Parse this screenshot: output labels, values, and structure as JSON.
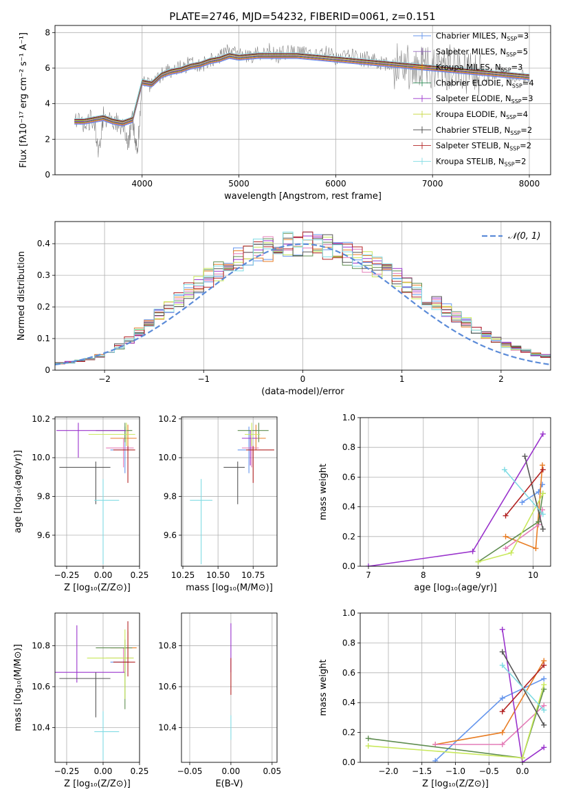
{
  "chart_data": [
    {
      "id": "spec",
      "type": "line",
      "title": "PLATE=2746, MJD=54232, FIBERID=0061, z=0.151",
      "xlabel": "wavelength [Angstrom, rest frame]",
      "ylabel": "Flux [fλ10⁻¹⁷ erg cm⁻² s⁻¹ A⁻¹]",
      "xlim": [
        3100,
        8220
      ],
      "ylim": [
        0,
        8.4
      ],
      "xticks": [
        4000,
        5000,
        6000,
        7000,
        8000
      ],
      "yticks": [
        0,
        2,
        4,
        6,
        8
      ],
      "data_series": {
        "name": "",
        "color": "#808080",
        "x": [
          3300,
          3400,
          3500,
          3550,
          3600,
          3700,
          3800,
          3850,
          3900,
          3950,
          4000,
          4100,
          4200,
          4300,
          4400,
          4500,
          4600,
          4700,
          4800,
          4900,
          5000,
          5100,
          5200,
          5300,
          5400,
          5500,
          5600,
          5700,
          5800,
          5900,
          6000,
          6100,
          6200,
          6300,
          6400,
          6500,
          6600,
          6700,
          6800,
          6900,
          7000,
          7100,
          7200,
          7300,
          7400,
          7500,
          7600,
          7700,
          7800,
          7900,
          8000
        ],
        "y": [
          3.0,
          2.9,
          3.2,
          1.0,
          3.3,
          3.0,
          2.8,
          1.5,
          3.2,
          1.2,
          5.2,
          5.0,
          5.6,
          5.9,
          6.0,
          6.3,
          6.1,
          6.5,
          6.6,
          7.0,
          6.8,
          6.6,
          6.8,
          7.0,
          6.7,
          6.9,
          6.8,
          6.9,
          6.7,
          6.8,
          6.6,
          6.7,
          6.6,
          6.5,
          6.4,
          6.3,
          6.1,
          6.2,
          6.0,
          6.1,
          5.9,
          6.0,
          6.1,
          5.9,
          5.8,
          5.7,
          5.6,
          5.7,
          5.5,
          5.6,
          5.5
        ]
      },
      "model_series_names": [
        "Chabrier MILES, N_SSP=3",
        "Salpeter MILES, N_SSP=5",
        "Kroupa MILES, N_SSP=3",
        "Chabrier ELODIE, N_SSP=4",
        "Salpeter ELODIE, N_SSP=3",
        "Kroupa ELODIE, N_SSP=4",
        "Chabrier STELIB, N_SSP=2",
        "Salpeter STELIB, N_SSP=2",
        "Kroupa STELIB, N_SSP=2"
      ],
      "model_line_x": [
        3300,
        3400,
        3500,
        3600,
        3700,
        3800,
        3900,
        4000,
        4100,
        4200,
        4300,
        4400,
        4500,
        4600,
        4700,
        4800,
        4900,
        5000,
        5200,
        5400,
        5600,
        5800,
        6000,
        6200,
        6400,
        6600,
        6800,
        7000,
        7200,
        7400,
        7600,
        7800,
        8000
      ],
      "model_line_y": [
        3.0,
        3.0,
        3.1,
        3.2,
        3.0,
        2.9,
        3.1,
        5.2,
        5.1,
        5.6,
        5.8,
        5.9,
        6.1,
        6.2,
        6.4,
        6.5,
        6.7,
        6.6,
        6.7,
        6.7,
        6.7,
        6.6,
        6.5,
        6.4,
        6.3,
        6.2,
        6.1,
        6.0,
        5.9,
        5.8,
        5.7,
        5.6,
        5.5
      ],
      "legend_labels": [
        {
          "name": "Chabrier MILES, N",
          "sub": "SSP",
          "tail": "=3"
        },
        {
          "name": "Salpeter MILES, N",
          "sub": "SSP",
          "tail": "=5"
        },
        {
          "name": "Kroupa MILES, N",
          "sub": "SSP",
          "tail": "=3"
        },
        {
          "name": "Chabrier ELODIE, N",
          "sub": "SSP",
          "tail": "=4"
        },
        {
          "name": "Salpeter ELODIE, N",
          "sub": "SSP",
          "tail": "=3"
        },
        {
          "name": "Kroupa ELODIE, N",
          "sub": "SSP",
          "tail": "=4"
        },
        {
          "name": "Chabrier STELIB, N",
          "sub": "SSP",
          "tail": "=2"
        },
        {
          "name": "Salpeter STELIB, N",
          "sub": "SSP",
          "tail": "=2"
        },
        {
          "name": "Kroupa STELIB, N",
          "sub": "SSP",
          "tail": "=2"
        }
      ],
      "legend_placement": "top-right"
    },
    {
      "id": "hist",
      "type": "line",
      "xlabel": "(data-model)/error",
      "ylabel": "Normed distribution",
      "xlim": [
        -2.5,
        2.5
      ],
      "ylim": [
        0,
        0.47
      ],
      "xticks": [
        -2,
        -1,
        0,
        1,
        2
      ],
      "yticks": [
        0.0,
        0.1,
        0.2,
        0.3,
        0.4
      ],
      "grid": true,
      "legend": "𝒩(0, 1)",
      "legend_placement": "top-right",
      "bin_edges_start": -2.6,
      "bin_width": 0.1,
      "hist_base": [
        0.02,
        0.022,
        0.025,
        0.03,
        0.035,
        0.045,
        0.06,
        0.075,
        0.095,
        0.12,
        0.15,
        0.175,
        0.2,
        0.225,
        0.25,
        0.27,
        0.29,
        0.31,
        0.33,
        0.35,
        0.365,
        0.375,
        0.385,
        0.39,
        0.395,
        0.4,
        0.4,
        0.395,
        0.39,
        0.38,
        0.37,
        0.355,
        0.34,
        0.325,
        0.31,
        0.29,
        0.27,
        0.25,
        0.23,
        0.21,
        0.19,
        0.17,
        0.15,
        0.13,
        0.11,
        0.095,
        0.08,
        0.07,
        0.06,
        0.05,
        0.045,
        0.04
      ],
      "normal_curve": {
        "mu": 0,
        "sigma": 1
      }
    },
    {
      "id": "age_Z",
      "type": "scatter",
      "xlabel": "Z [log₁₀(Z/Z⊙)]",
      "ylabel": "age  [log₁₀(age/yr)]",
      "xlim": [
        -0.33,
        0.25
      ],
      "ylim": [
        9.44,
        10.21
      ],
      "xticks": [
        -0.25,
        0.0,
        0.25
      ],
      "xticklabels": [
        "−0.25",
        "0.00",
        "0.25"
      ],
      "yticks": [
        9.6,
        9.8,
        10.0,
        10.2
      ],
      "yticklabels": [
        "9.6",
        "9.8",
        "10.0",
        "10.2"
      ],
      "points": [
        {
          "x": 0.15,
          "y": 10.04,
          "xerr": [
            0.1,
            0.03
          ],
          "yerr": [
            0.12,
            0.12
          ]
        },
        {
          "x": 0.17,
          "y": 10.1,
          "xerr": [
            0.12,
            0.06
          ],
          "yerr": [
            0.06,
            0.07
          ]
        },
        {
          "x": 0.14,
          "y": 10.05,
          "xerr": [
            0.12,
            0.07
          ],
          "yerr": [
            0.1,
            0.05
          ]
        },
        {
          "x": 0.15,
          "y": 10.14,
          "xerr": [
            0.2,
            0.05
          ],
          "yerr": [
            0.06,
            0.04
          ]
        },
        {
          "x": -0.17,
          "y": 10.14,
          "xerr": [
            0.15,
            0.33
          ],
          "yerr": [
            0.14,
            0.04
          ]
        },
        {
          "x": 0.16,
          "y": 10.12,
          "xerr": [
            0.26,
            0.06
          ],
          "yerr": [
            0.06,
            0.06
          ]
        },
        {
          "x": -0.05,
          "y": 9.95,
          "xerr": [
            0.25,
            0.1
          ],
          "yerr": [
            0.19,
            0.03
          ]
        },
        {
          "x": 0.17,
          "y": 10.04,
          "xerr": [
            0.1,
            0.05
          ],
          "yerr": [
            0.17,
            0.02
          ]
        },
        {
          "x": 0.0,
          "y": 9.78,
          "xerr": [
            0.06,
            0.11
          ],
          "yerr": [
            0.33,
            0.11
          ]
        }
      ]
    },
    {
      "id": "age_mass",
      "type": "scatter",
      "xlabel": "mass [log₁₀(M/M⊙)]",
      "ylabel": "",
      "xlim": [
        10.24,
        10.92
      ],
      "ylim": [
        9.44,
        10.21
      ],
      "xticks": [
        10.25,
        10.5,
        10.75
      ],
      "xticklabels": [
        "10.25",
        "10.50",
        "10.75"
      ],
      "yticks": [
        9.6,
        9.8,
        10.0,
        10.2
      ],
      "yticklabels": [
        "9.6",
        "9.8",
        "10.0",
        "10.2"
      ],
      "points": [
        {
          "x": 10.72,
          "y": 10.04,
          "xerr": [
            0.08,
            0.03
          ],
          "yerr": [
            0.12,
            0.12
          ]
        },
        {
          "x": 10.77,
          "y": 10.1,
          "xerr": [
            0.06,
            0.07
          ],
          "yerr": [
            0.06,
            0.07
          ]
        },
        {
          "x": 10.74,
          "y": 10.05,
          "xerr": [
            0.07,
            0.05
          ],
          "yerr": [
            0.1,
            0.05
          ]
        },
        {
          "x": 10.79,
          "y": 10.14,
          "xerr": [
            0.15,
            0.07
          ],
          "yerr": [
            0.06,
            0.04
          ]
        },
        {
          "x": 10.73,
          "y": 10.1,
          "xerr": [
            0.06,
            0.05
          ],
          "yerr": [
            0.14,
            0.04
          ]
        },
        {
          "x": 10.74,
          "y": 10.12,
          "xerr": [
            0.05,
            0.06
          ],
          "yerr": [
            0.06,
            0.06
          ]
        },
        {
          "x": 10.64,
          "y": 9.95,
          "xerr": [
            0.1,
            0.05
          ],
          "yerr": [
            0.19,
            0.03
          ]
        },
        {
          "x": 10.75,
          "y": 10.04,
          "xerr": [
            0.05,
            0.15
          ],
          "yerr": [
            0.17,
            0.02
          ]
        },
        {
          "x": 10.38,
          "y": 9.78,
          "xerr": [
            0.08,
            0.08
          ],
          "yerr": [
            0.33,
            0.11
          ]
        }
      ]
    },
    {
      "id": "w_age",
      "type": "line",
      "xlabel": "age  [log₁₀(age/yr)]",
      "ylabel": "mass weight",
      "xlim": [
        6.85,
        10.32
      ],
      "ylim": [
        0,
        1.0
      ],
      "xticks": [
        7,
        8,
        9,
        10
      ],
      "xticklabels": [
        "7",
        "8",
        "9",
        "10"
      ],
      "yticks": [
        0.0,
        0.2,
        0.4,
        0.6,
        0.8,
        1.0
      ],
      "yticklabels": [
        "0.0",
        "0.2",
        "0.4",
        "0.6",
        "0.8",
        "1.0"
      ],
      "grid": true,
      "series": [
        {
          "x": [
            9.8,
            10.1,
            10.17
          ],
          "y": [
            0.43,
            0.5,
            0.55
          ]
        },
        {
          "x": [
            9.5,
            10.05,
            10.17
          ],
          "y": [
            0.2,
            0.12,
            0.68
          ]
        },
        {
          "x": [
            9.5,
            10.1,
            10.17
          ],
          "y": [
            0.12,
            0.28,
            0.38
          ]
        },
        {
          "x": [
            9.0,
            10.1,
            10.18
          ],
          "y": [
            0.03,
            0.3,
            0.49
          ]
        },
        {
          "x": [
            7.0,
            8.9,
            10.18
          ],
          "y": [
            0.0,
            0.1,
            0.89
          ]
        },
        {
          "x": [
            9.0,
            9.6,
            10.18
          ],
          "y": [
            0.03,
            0.09,
            0.49
          ]
        },
        {
          "x": [
            9.85,
            10.18
          ],
          "y": [
            0.74,
            0.25
          ]
        },
        {
          "x": [
            9.5,
            10.18
          ],
          "y": [
            0.34,
            0.65
          ]
        },
        {
          "x": [
            9.48,
            10.18
          ],
          "y": [
            0.65,
            0.35
          ]
        }
      ]
    },
    {
      "id": "mass_Z",
      "type": "scatter",
      "xlabel": "Z [log₁₀(Z/Z⊙)]",
      "ylabel": "mass [log₁₀(M/M⊙)]",
      "xlim": [
        -0.33,
        0.25
      ],
      "ylim": [
        10.23,
        10.96
      ],
      "xticks": [
        -0.25,
        0.0,
        0.25
      ],
      "xticklabels": [
        "−0.25",
        "0.00",
        "0.25"
      ],
      "yticks": [
        10.4,
        10.6,
        10.8
      ],
      "yticklabels": [
        "10.4",
        "10.6",
        "10.8"
      ],
      "points": [
        {
          "x": 0.15,
          "y": 10.72,
          "xerr": [
            0.1,
            0.03
          ],
          "yerr": [
            0.07,
            0.07
          ]
        },
        {
          "x": 0.17,
          "y": 10.79,
          "xerr": [
            0.12,
            0.06
          ],
          "yerr": [
            0.05,
            0.08
          ]
        },
        {
          "x": 0.14,
          "y": 10.74,
          "xerr": [
            0.12,
            0.07
          ],
          "yerr": [
            0.07,
            0.05
          ]
        },
        {
          "x": 0.15,
          "y": 10.79,
          "xerr": [
            0.2,
            0.05
          ],
          "yerr": [
            0.3,
            0.04
          ]
        },
        {
          "x": -0.18,
          "y": 10.67,
          "xerr": [
            0.15,
            0.33
          ],
          "yerr": [
            0.05,
            0.23
          ]
        },
        {
          "x": 0.15,
          "y": 10.74,
          "xerr": [
            0.26,
            0.06
          ],
          "yerr": [
            0.2,
            0.14
          ]
        },
        {
          "x": -0.05,
          "y": 10.64,
          "xerr": [
            0.25,
            0.1
          ],
          "yerr": [
            0.19,
            0.03
          ]
        },
        {
          "x": 0.17,
          "y": 10.72,
          "xerr": [
            0.1,
            0.05
          ],
          "yerr": [
            0.07,
            0.2
          ]
        },
        {
          "x": 0.0,
          "y": 10.38,
          "xerr": [
            0.06,
            0.11
          ],
          "yerr": [
            0.14,
            0.1
          ]
        }
      ]
    },
    {
      "id": "mass_ebv",
      "type": "scatter",
      "xlabel": "E(B-V)",
      "ylabel": "",
      "xlim": [
        -0.06,
        0.056
      ],
      "ylim": [
        10.23,
        10.96
      ],
      "xticks": [
        -0.05,
        0.0,
        0.05
      ],
      "xticklabels": [
        "−0.05",
        "0.00",
        "0.05"
      ],
      "yticks": [
        10.4,
        10.6,
        10.8
      ],
      "yticklabels": [
        "10.4",
        "10.6",
        "10.8"
      ],
      "points": [
        {
          "x": 0.0,
          "y": 10.79,
          "xerr": [
            0,
            0
          ],
          "yerr": [
            0.12,
            0.12
          ]
        },
        {
          "x": 0.0,
          "y": 10.65,
          "xerr": [
            0,
            0
          ],
          "yerr": [
            0.09,
            0.09
          ]
        },
        {
          "x": 0.0,
          "y": 10.4,
          "xerr": [
            0,
            0
          ],
          "yerr": [
            0.06,
            0.06
          ]
        }
      ]
    },
    {
      "id": "w_Z",
      "type": "line",
      "xlabel": "Z [log₁₀(Z/Z⊙)]",
      "ylabel": "mass weight",
      "xlim": [
        -2.42,
        0.42
      ],
      "ylim": [
        0,
        1.0
      ],
      "xticks": [
        -2.0,
        -1.5,
        -1.0,
        -0.5,
        0.0
      ],
      "xticklabels": [
        "−2.0",
        "−1.5",
        "−1.0",
        "−0.5",
        "0.0"
      ],
      "yticks": [
        0.0,
        0.2,
        0.4,
        0.6,
        0.8,
        1.0
      ],
      "yticklabels": [
        "0.0",
        "0.2",
        "0.4",
        "0.6",
        "0.8",
        "1.0"
      ],
      "grid": true,
      "series": [
        {
          "x": [
            -1.3,
            -0.3,
            0.32
          ],
          "y": [
            0.01,
            0.43,
            0.56
          ]
        },
        {
          "x": [
            -1.3,
            -0.3,
            0.32
          ],
          "y": [
            0.12,
            0.2,
            0.68
          ]
        },
        {
          "x": [
            -1.3,
            -0.3,
            0.32
          ],
          "y": [
            0.12,
            0.12,
            0.38
          ]
        },
        {
          "x": [
            -2.3,
            0.0,
            0.32
          ],
          "y": [
            0.16,
            0.03,
            0.49
          ]
        },
        {
          "x": [
            -0.3,
            0.0,
            0.32
          ],
          "y": [
            0.89,
            0.0,
            0.1
          ]
        },
        {
          "x": [
            -2.3,
            0.0,
            0.32
          ],
          "y": [
            0.11,
            0.03,
            0.52
          ]
        },
        {
          "x": [
            -0.3,
            0.32
          ],
          "y": [
            0.74,
            0.25
          ]
        },
        {
          "x": [
            -0.3,
            0.32
          ],
          "y": [
            0.34,
            0.65
          ]
        },
        {
          "x": [
            -0.3,
            0.32
          ],
          "y": [
            0.65,
            0.35
          ]
        }
      ]
    }
  ],
  "colors": [
    "#6495ed",
    "#9467bd",
    "#ff7f0e",
    "#2e8b57",
    "#9932cc",
    "#c8d94a",
    "#444444",
    "#b22222",
    "#7fdbe3"
  ],
  "panel_colors": [
    "#6495ed",
    "#e87d24",
    "#e47cb7",
    "#5e8c4f",
    "#9932cc",
    "#c8e85a",
    "#555555",
    "#b22222",
    "#7fdbe3"
  ],
  "hist_colors": [
    "#6495ed",
    "#e87d24",
    "#e47cb7",
    "#5e8c4f",
    "#9932cc",
    "#c8e85a",
    "#555555",
    "#b22222",
    "#7fdbe3"
  ],
  "normal_curve_color": "#5b8bd8"
}
